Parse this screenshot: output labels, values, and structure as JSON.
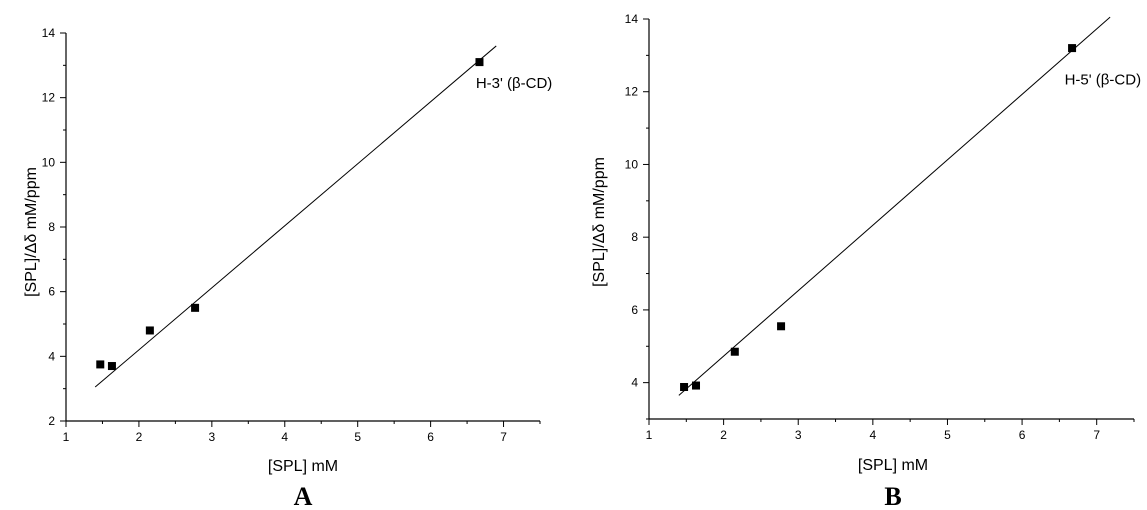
{
  "chart_data": [
    {
      "type": "scatter",
      "panel_label": "A",
      "xlabel": "[SPL] mM",
      "ylabel": "[SPL]/Δδ mM/ppm",
      "xlim": [
        1,
        7.5
      ],
      "ylim": [
        2,
        14
      ],
      "x_ticks": [
        1,
        2,
        3,
        4,
        5,
        6,
        7
      ],
      "y_ticks": [
        2,
        4,
        6,
        8,
        10,
        12,
        14
      ],
      "points": [
        {
          "x": 1.47,
          "y": 3.75
        },
        {
          "x": 1.63,
          "y": 3.7
        },
        {
          "x": 2.15,
          "y": 4.8
        },
        {
          "x": 2.77,
          "y": 5.5
        },
        {
          "x": 6.67,
          "y": 13.1
        }
      ],
      "fit_line": {
        "x": [
          1.4,
          6.9
        ],
        "y": [
          3.05,
          13.6
        ]
      },
      "annotation": "H-3' (β-CD)",
      "annotation_at": {
        "x": 6.62,
        "y": 12.3
      }
    },
    {
      "type": "scatter",
      "panel_label": "B",
      "xlabel": "[SPL] mM",
      "ylabel": "[SPL]/Δδ mM/ppm",
      "xlim": [
        1,
        7.5
      ],
      "ylim": [
        3,
        14
      ],
      "x_ticks": [
        1,
        2,
        3,
        4,
        5,
        6,
        7
      ],
      "y_ticks": [
        4,
        6,
        8,
        10,
        12,
        14
      ],
      "points": [
        {
          "x": 1.47,
          "y": 3.88
        },
        {
          "x": 1.63,
          "y": 3.92
        },
        {
          "x": 2.15,
          "y": 4.85
        },
        {
          "x": 2.77,
          "y": 5.55
        },
        {
          "x": 6.67,
          "y": 13.2
        }
      ],
      "fit_line": {
        "x": [
          1.4,
          7.18
        ],
        "y": [
          3.65,
          14.05
        ]
      },
      "annotation": "H-5' (β-CD)",
      "annotation_at": {
        "x": 6.57,
        "y": 12.2
      }
    }
  ]
}
